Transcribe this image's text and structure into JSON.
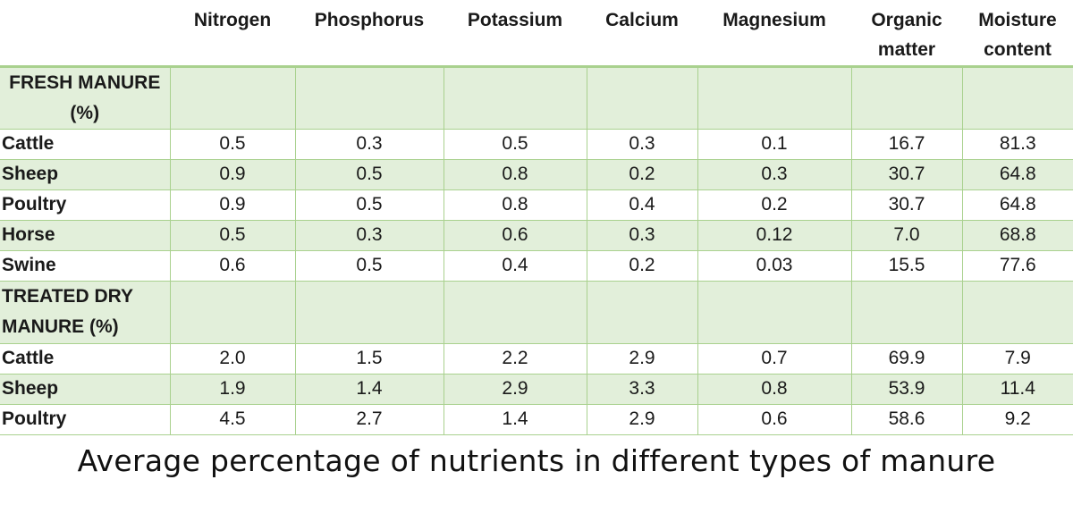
{
  "table": {
    "columns": [
      "Nitrogen",
      "Phosphorus",
      "Potassium",
      "Calcium",
      "Magnesium",
      "Organic matter",
      "Moisture content"
    ],
    "sections": [
      {
        "label": "FRESH MANURE (%)",
        "rows": [
          {
            "name": "Cattle",
            "values": [
              "0.5",
              "0.3",
              "0.5",
              "0.3",
              "0.1",
              "16.7",
              "81.3"
            ]
          },
          {
            "name": "Sheep",
            "values": [
              "0.9",
              "0.5",
              "0.8",
              "0.2",
              "0.3",
              "30.7",
              "64.8"
            ]
          },
          {
            "name": "Poultry",
            "values": [
              "0.9",
              "0.5",
              "0.8",
              "0.4",
              "0.2",
              "30.7",
              "64.8"
            ]
          },
          {
            "name": "Horse",
            "values": [
              "0.5",
              "0.3",
              "0.6",
              "0.3",
              "0.12",
              "7.0",
              "68.8"
            ]
          },
          {
            "name": "Swine",
            "values": [
              "0.6",
              "0.5",
              "0.4",
              "0.2",
              "0.03",
              "15.5",
              "77.6"
            ]
          }
        ]
      },
      {
        "label": "TREATED DRY MANURE (%)",
        "rows": [
          {
            "name": "Cattle",
            "values": [
              "2.0",
              "1.5",
              "2.2",
              "2.9",
              "0.7",
              "69.9",
              "7.9"
            ]
          },
          {
            "name": "Sheep",
            "values": [
              "1.9",
              "1.4",
              "2.9",
              "3.3",
              "0.8",
              "53.9",
              "11.4"
            ]
          },
          {
            "name": "Poultry",
            "values": [
              "4.5",
              "2.7",
              "1.4",
              "2.9",
              "0.6",
              "58.6",
              "9.2"
            ]
          }
        ]
      }
    ]
  },
  "caption": "Average percentage of nutrients in different types of manure",
  "colors": {
    "shade": "#e2efda",
    "border": "#a9d18e"
  }
}
